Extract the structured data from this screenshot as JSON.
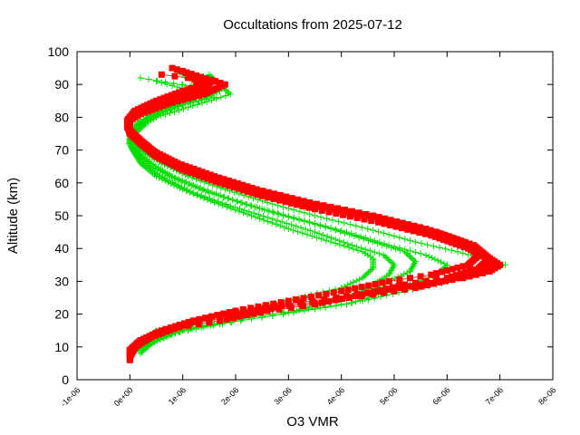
{
  "chart_data": {
    "type": "scatter",
    "title": "Occultations from 2025-07-12",
    "xlabel": "O3 VMR",
    "ylabel": "Altitude (km)",
    "xlim": [
      -1e-06,
      8e-06
    ],
    "ylim": [
      0,
      100
    ],
    "xticks": [
      "-1e-06",
      "0e+00",
      "1e-06",
      "2e-06",
      "3e-06",
      "4e-06",
      "5e-06",
      "6e-06",
      "7e-06",
      "8e-06"
    ],
    "yticks": [
      "0",
      "10",
      "20",
      "30",
      "40",
      "50",
      "60",
      "70",
      "80",
      "90",
      "100"
    ],
    "grid": false,
    "legend": "none",
    "series": [
      {
        "name": "green profiles",
        "color": "#00dd00",
        "marker": "plus",
        "profiles": [
          {
            "x": [
              1.5e-06,
              1.9e-06,
              1.1e-06,
              5e-07,
              3e-07,
              1e-07,
              0,
              5e-08,
              2e-07,
              5e-07,
              1e-06,
              1.6e-06,
              2.3e-06,
              3e-06,
              3.8e-06,
              4.4e-06,
              4.6e-06,
              4.6e-06,
              4.4e-06,
              4e-06,
              3.2e-06,
              2.4e-06,
              1.6e-06,
              1e-06,
              5e-07,
              3e-07,
              1.5e-07
            ],
            "y": [
              93,
              87,
              83,
              80,
              78,
              75,
              72,
              70,
              66,
              62,
              58,
              54,
              50,
              46,
              42,
              39,
              37,
              34,
              31,
              28,
              25,
              22,
              19,
              17,
              15,
              12,
              9
            ]
          },
          {
            "x": [
              9e-07,
              1.5e-06,
              9e-07,
              4e-07,
              2e-07,
              0,
              -1e-08,
              1e-07,
              3e-07,
              7e-07,
              1.2e-06,
              1.9e-06,
              2.7e-06,
              3.5e-06,
              4.2e-06,
              4.8e-06,
              5e-06,
              4.9e-06,
              4.6e-06,
              4.3e-06,
              3.6e-06,
              2.9e-06,
              2.1e-06,
              1.4e-06,
              8e-07,
              4e-07,
              2e-07
            ],
            "y": [
              94,
              88,
              84,
              81,
              78,
              75,
              72,
              69,
              65,
              61,
              57,
              53,
              49,
              45,
              41,
              38,
              35,
              32,
              29,
              26,
              23,
              20,
              18,
              16,
              14,
              11,
              8
            ]
          },
          {
            "x": [
              2e-07,
              1.3e-06,
              1.2e-06,
              7e-07,
              3e-07,
              1e-07,
              0,
              1e-07,
              4e-07,
              8e-07,
              1.4e-06,
              2.1e-06,
              2.9e-06,
              3.8e-06,
              4.6e-06,
              5.2e-06,
              5.4e-06,
              5.3e-06,
              4.9e-06,
              4.5e-06,
              3.9e-06,
              3.1e-06,
              2.3e-06,
              1.6e-06,
              1e-06,
              5e-07,
              2e-07
            ],
            "y": [
              92,
              89,
              85,
              82,
              79,
              76,
              73,
              70,
              66,
              62,
              58,
              54,
              50,
              46,
              42,
              39,
              36,
              33,
              30,
              27,
              24,
              21,
              19,
              17,
              15,
              12,
              9
            ]
          },
          {
            "x": [
              5e-07,
              1.6e-06,
              1e-06,
              5e-07,
              2e-07,
              5e-08,
              0,
              1.5e-07,
              4e-07,
              9e-07,
              1.5e-06,
              2.3e-06,
              3.2e-06,
              4.1e-06,
              4.9e-06,
              5.6e-06,
              6e-06,
              5.8e-06,
              5.3e-06,
              4.7e-06,
              4.1e-06,
              3.3e-06,
              2.5e-06,
              1.7e-06,
              1e-06,
              5e-07,
              2e-07
            ],
            "y": [
              91,
              86,
              84,
              81,
              78,
              75,
              72,
              69,
              65,
              61,
              57,
              53,
              49,
              45,
              41,
              38,
              35,
              32,
              29,
              26,
              23,
              21,
              19,
              17,
              15,
              12,
              9
            ]
          },
          {
            "x": [
              1e-06,
              1.7e-06,
              1.3e-06,
              6e-07,
              2e-07,
              0,
              5e-08,
              2e-07,
              6e-07,
              1.1e-06,
              1.8e-06,
              2.6e-06,
              3.5e-06,
              4.5e-06,
              5.4e-06,
              6.2e-06,
              7.1e-06,
              6.5e-06,
              5.8e-06,
              5.2e-06,
              4.4e-06,
              3.6e-06,
              2.7e-06,
              1.9e-06,
              1.2e-06,
              6e-07,
              3e-07
            ],
            "y": [
              90,
              88,
              85,
              82,
              79,
              76,
              73,
              70,
              66,
              62,
              58,
              54,
              50,
              46,
              42,
              39,
              35,
              32,
              29,
              27,
              24,
              22,
              20,
              18,
              16,
              13,
              10
            ]
          }
        ]
      },
      {
        "name": "red profiles",
        "color": "#ff0000",
        "marker": "square",
        "profiles": [
          {
            "x": [
              1e-06,
              1.5e-06,
              1.2e-06,
              6e-07,
              2e-07,
              0,
              -5e-08,
              1e-07,
              4e-07,
              9e-07,
              1.6e-06,
              2.4e-06,
              3.4e-06,
              4.6e-06,
              5.6e-06,
              6.3e-06,
              6.6e-06,
              6.4e-06,
              5.7e-06,
              4.9e-06,
              4e-06,
              3e-06,
              2e-06,
              1.2e-06,
              6e-07,
              2e-07,
              0,
              0
            ],
            "y": [
              94,
              90,
              87,
              84,
              82,
              80,
              77,
              74,
              70,
              66,
              62,
              58,
              54,
              50,
              46,
              42,
              38,
              35,
              32,
              30,
              27,
              24,
              21,
              18,
              15,
              12,
              9,
              6
            ]
          },
          {
            "x": [
              6e-07,
              1.6e-06,
              1e-06,
              5e-07,
              1e-07,
              -5e-08,
              0,
              2e-07,
              5e-07,
              1e-06,
              1.7e-06,
              2.6e-06,
              3.6e-06,
              4.8e-06,
              5.8e-06,
              6.5e-06,
              6.8e-06,
              6.6e-06,
              6e-06,
              5.2e-06,
              4.4e-06,
              3.5e-06,
              2.6e-06,
              1.7e-06,
              9e-07,
              4e-07,
              1e-07,
              0
            ],
            "y": [
              93,
              91,
              88,
              85,
              82,
              79,
              76,
              73,
              69,
              65,
              61,
              57,
              53,
              49,
              45,
              41,
              37,
              34,
              31,
              29,
              26,
              23,
              21,
              18,
              16,
              13,
              10,
              7
            ]
          },
          {
            "x": [
              8e-07,
              1.8e-06,
              1.4e-06,
              7e-07,
              2e-07,
              0,
              0,
              1.5e-07,
              4.5e-07,
              9.5e-07,
              1.65e-06,
              2.5e-06,
              3.5e-06,
              4.7e-06,
              5.7e-06,
              6.4e-06,
              6.9e-06,
              6.7e-06,
              6.2e-06,
              5.4e-06,
              4.6e-06,
              3.7e-06,
              2.8e-06,
              1.9e-06,
              1.1e-06,
              5e-07,
              1.5e-07,
              0
            ],
            "y": [
              95,
              90,
              87,
              84,
              81,
              79,
              76,
              73,
              69,
              65,
              61,
              57,
              53,
              49,
              45,
              41,
              36,
              33,
              31,
              28,
              26,
              24,
              22,
              19,
              17,
              14,
              11,
              8
            ]
          },
          {
            "x": [
              1.2e-06,
              1.4e-06,
              9e-07,
              4e-07,
              1e-07,
              -5e-08,
              0,
              2e-07,
              5e-07,
              1e-06,
              1.7e-06,
              2.5e-06,
              3.5e-06,
              4.7e-06,
              5.7e-06,
              6.4e-06,
              7e-06,
              6.8e-06,
              6.3e-06,
              5.5e-06,
              4.7e-06,
              3.9e-06,
              3e-06,
              2.1e-06,
              1.3e-06,
              7e-07,
              2e-07,
              0
            ],
            "y": [
              92,
              89,
              86,
              83,
              81,
              78,
              75,
              72,
              68,
              64,
              60,
              56,
              52,
              48,
              44,
              40,
              35,
              33,
              31,
              29,
              27,
              25,
              23,
              20,
              18,
              15,
              12,
              9
            ]
          }
        ]
      }
    ]
  }
}
